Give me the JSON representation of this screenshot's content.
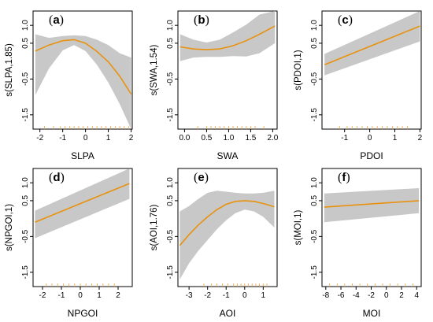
{
  "figure_label": "GAM partial effect plots",
  "chart_data": [
    {
      "type": "line",
      "panel_label": "(a)",
      "xlabel": "SLPA",
      "ylabel": "s(SLPA,1.85)",
      "xlim": [
        -2.3,
        2.05
      ],
      "ylim": [
        -1.9,
        1.4
      ],
      "xticks": [
        -2,
        -1,
        0,
        1,
        2
      ],
      "yticks": [
        -1.5,
        -0.5,
        0.5,
        1.0
      ],
      "fit": {
        "x": [
          -2.2,
          -1.6,
          -1.0,
          -0.5,
          0.0,
          0.5,
          1.0,
          1.5,
          2.0
        ],
        "y": [
          0.28,
          0.45,
          0.57,
          0.6,
          0.5,
          0.27,
          -0.02,
          -0.42,
          -0.92
        ]
      },
      "band_upper": [
        0.75,
        0.65,
        0.7,
        0.72,
        0.7,
        0.6,
        0.45,
        0.22,
        0.1
      ],
      "band_lower": [
        -0.95,
        -0.2,
        0.3,
        0.45,
        0.28,
        -0.1,
        -0.6,
        -1.2,
        -1.9
      ],
      "rug": [
        -1.8,
        -1.4,
        -1.1,
        -0.9,
        -0.7,
        -0.5,
        -0.3,
        -0.1,
        0.1,
        0.3,
        0.5,
        0.7,
        0.9,
        1.1,
        1.3,
        1.5,
        1.7,
        1.9
      ]
    },
    {
      "type": "line",
      "panel_label": "(b)",
      "xlabel": "SWA",
      "ylabel": "s(SWA,1.54)",
      "xlim": [
        -0.15,
        2.1
      ],
      "ylim": [
        -1.9,
        1.4
      ],
      "xticks": [
        0.0,
        0.5,
        1.0,
        1.5,
        2.0
      ],
      "yticks": [
        -1.5,
        -0.5,
        0.5,
        1.0
      ],
      "fit": {
        "x": [
          -0.1,
          0.2,
          0.5,
          0.8,
          1.1,
          1.4,
          1.7,
          2.05
        ],
        "y": [
          0.4,
          0.34,
          0.32,
          0.34,
          0.43,
          0.57,
          0.75,
          0.98
        ]
      },
      "band_upper": [
        0.75,
        0.6,
        0.52,
        0.6,
        0.8,
        1.02,
        1.3,
        1.4
      ],
      "band_lower": [
        0.0,
        0.1,
        0.12,
        0.12,
        0.14,
        0.13,
        0.22,
        0.5
      ],
      "rug": [
        0.3,
        0.5,
        0.6,
        0.7,
        0.8,
        0.9,
        1.0,
        1.1,
        1.2,
        1.3,
        1.4,
        1.5,
        1.6,
        1.8
      ]
    },
    {
      "type": "line",
      "panel_label": "(c)",
      "xlabel": "PDOI",
      "ylabel": "s(PDOI,1)",
      "xlim": [
        -1.9,
        2.05
      ],
      "ylim": [
        -1.9,
        1.4
      ],
      "xticks": [
        -1,
        0,
        1,
        2
      ],
      "yticks": [
        -1.5,
        -0.5,
        0.5,
        1.0
      ],
      "fit": {
        "x": [
          -1.8,
          2.0
        ],
        "y": [
          -0.1,
          0.98
        ]
      },
      "band_upper": [
        0.2,
        1.4
      ],
      "band_lower": [
        -0.4,
        0.55
      ],
      "rug": [
        -1.2,
        -0.9,
        -0.7,
        -0.5,
        -0.3,
        -0.1,
        0.1,
        0.3,
        0.5,
        0.7,
        0.9,
        1.1,
        1.3,
        1.5
      ]
    },
    {
      "type": "line",
      "panel_label": "(d)",
      "xlabel": "NPGOI",
      "ylabel": "s(NPGOI,1)",
      "xlim": [
        -2.5,
        2.75
      ],
      "ylim": [
        -1.9,
        1.4
      ],
      "xticks": [
        -2,
        -1,
        0,
        1,
        2
      ],
      "yticks": [
        -1.5,
        -0.5,
        0.5,
        1.0
      ],
      "fit": {
        "x": [
          -2.4,
          2.6
        ],
        "y": [
          -0.1,
          0.98
        ]
      },
      "band_upper": [
        0.22,
        1.4
      ],
      "band_lower": [
        -0.55,
        0.55
      ],
      "rug": [
        -1.8,
        -1.5,
        -1.2,
        -0.9,
        -0.6,
        -0.3,
        0.0,
        0.3,
        0.6,
        0.9,
        1.2,
        1.5,
        1.8
      ]
    },
    {
      "type": "line",
      "panel_label": "(e)",
      "xlabel": "AOI",
      "ylabel": "s(AOI,1.76)",
      "xlim": [
        -3.6,
        1.75
      ],
      "ylim": [
        -1.9,
        1.4
      ],
      "xticks": [
        -3,
        -2,
        -1,
        0,
        1
      ],
      "yticks": [
        -1.5,
        -0.5,
        0.5,
        1.0
      ],
      "fit": {
        "x": [
          -3.5,
          -3.0,
          -2.5,
          -2.0,
          -1.5,
          -1.0,
          -0.5,
          0.0,
          0.5,
          1.0,
          1.6
        ],
        "y": [
          -0.75,
          -0.45,
          -0.18,
          0.05,
          0.25,
          0.4,
          0.48,
          0.5,
          0.48,
          0.42,
          0.33
        ]
      },
      "band_upper": [
        0.2,
        0.35,
        0.55,
        0.72,
        0.78,
        0.75,
        0.72,
        0.7,
        0.7,
        0.72,
        0.78
      ],
      "band_lower": [
        -1.7,
        -1.25,
        -0.9,
        -0.6,
        -0.3,
        -0.05,
        0.15,
        0.25,
        0.2,
        0.05,
        -0.25
      ],
      "rug": [
        -2.2,
        -1.8,
        -1.5,
        -1.2,
        -0.9,
        -0.6,
        -0.4,
        -0.2,
        0.0,
        0.2,
        0.4,
        0.6,
        0.8,
        1.0,
        1.2
      ]
    },
    {
      "type": "line",
      "panel_label": "(f)",
      "xlabel": "MOI",
      "ylabel": "s(MOI,1)",
      "xlim": [
        -8.5,
        4.6
      ],
      "ylim": [
        -1.9,
        1.4
      ],
      "xticks": [
        -8,
        -6,
        -4,
        -2,
        0,
        2,
        4
      ],
      "yticks": [
        -1.5,
        -0.5,
        0.5,
        1.0
      ],
      "fit": {
        "x": [
          -8.2,
          4.3
        ],
        "y": [
          0.32,
          0.5
        ]
      },
      "band_upper": [
        0.7,
        0.85
      ],
      "band_lower": [
        -0.1,
        0.15
      ],
      "rug": [
        -7.5,
        -6.5,
        -5.5,
        -4.5,
        -3.5,
        -2.5,
        -1.5,
        -0.5,
        0.5,
        1.5,
        2.5,
        3.5
      ]
    }
  ]
}
